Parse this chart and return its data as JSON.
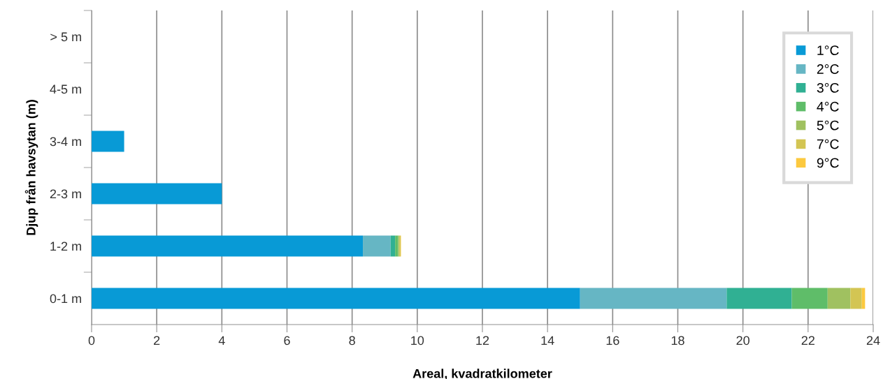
{
  "chart_data": {
    "type": "bar",
    "orientation": "horizontal",
    "stacked": true,
    "categories": [
      "> 5 m",
      "4-5 m",
      "3-4 m",
      "2-3 m",
      "1-2 m",
      "0-1 m"
    ],
    "series": [
      {
        "name": "1°C",
        "color": "#089ad6",
        "values": [
          0,
          0,
          1.0,
          4.0,
          8.33,
          15.0
        ]
      },
      {
        "name": "2°C",
        "color": "#66b6c4",
        "values": [
          0,
          0,
          0,
          0,
          0.85,
          4.5
        ]
      },
      {
        "name": "3°C",
        "color": "#30b093",
        "values": [
          0,
          0,
          0,
          0,
          0.14,
          2.0
        ]
      },
      {
        "name": "4°C",
        "color": "#5fbd69",
        "values": [
          0,
          0,
          0,
          0,
          0.09,
          1.1
        ]
      },
      {
        "name": "5°C",
        "color": "#a0c160",
        "values": [
          0,
          0,
          0,
          0,
          0.04,
          0.7
        ]
      },
      {
        "name": "7°C",
        "color": "#d3c553",
        "values": [
          0,
          0,
          0,
          0,
          0.04,
          0.35
        ]
      },
      {
        "name": "9°C",
        "color": "#fcc93f",
        "values": [
          0,
          0,
          0,
          0,
          0.01,
          0.1
        ]
      }
    ],
    "xlim": [
      0,
      24
    ],
    "xticks": [
      0,
      2,
      4,
      6,
      8,
      10,
      12,
      14,
      16,
      18,
      20,
      22,
      24
    ],
    "xlabel": "Areal, kvadratkilometer",
    "ylabel": "Djup från havsytan (m)",
    "grid": "x",
    "legend": "top right"
  }
}
